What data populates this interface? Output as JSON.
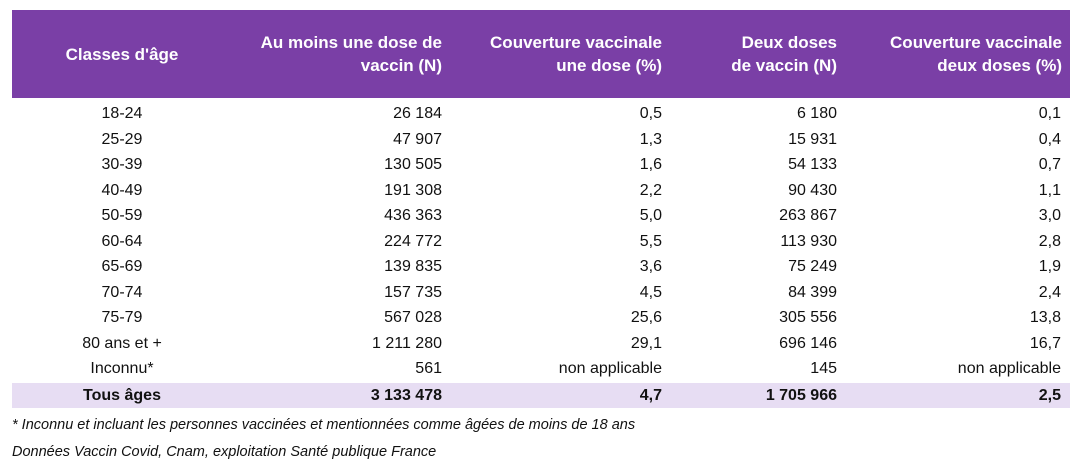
{
  "colors": {
    "header_bg": "#7a3fa6",
    "header_text": "#ffffff",
    "total_bg": "#e7ddf3"
  },
  "table": {
    "headers": [
      "Classes d'âge",
      "Au moins une dose de\nvaccin (N)",
      "Couverture vaccinale\nune dose (%)",
      "Deux doses\nde vaccin (N)",
      "Couverture vaccinale\ndeux doses (%)"
    ],
    "rows": [
      [
        "18-24",
        "26 184",
        "0,5",
        "6 180",
        "0,1"
      ],
      [
        "25-29",
        "47 907",
        "1,3",
        "15 931",
        "0,4"
      ],
      [
        "30-39",
        "130 505",
        "1,6",
        "54 133",
        "0,7"
      ],
      [
        "40-49",
        "191 308",
        "2,2",
        "90 430",
        "1,1"
      ],
      [
        "50-59",
        "436 363",
        "5,0",
        "263 867",
        "3,0"
      ],
      [
        "60-64",
        "224 772",
        "5,5",
        "113 930",
        "2,8"
      ],
      [
        "65-69",
        "139 835",
        "3,6",
        "75 249",
        "1,9"
      ],
      [
        "70-74",
        "157 735",
        "4,5",
        "84 399",
        "2,4"
      ],
      [
        "75-79",
        "567 028",
        "25,6",
        "305 556",
        "13,8"
      ],
      [
        "80 ans et +",
        "1 211 280",
        "29,1",
        "696 146",
        "16,7"
      ],
      [
        "Inconnu*",
        "561",
        "non applicable",
        "145",
        "non applicable"
      ]
    ],
    "total": [
      "Tous âges",
      "3 133 478",
      "4,7",
      "1 705 966",
      "2,5"
    ]
  },
  "footnotes": {
    "note": "* Inconnu et incluant les personnes vaccinées et mentionnées comme âgées de moins de 18 ans",
    "source": "Données Vaccin Covid, Cnam, exploitation Santé publique France"
  }
}
